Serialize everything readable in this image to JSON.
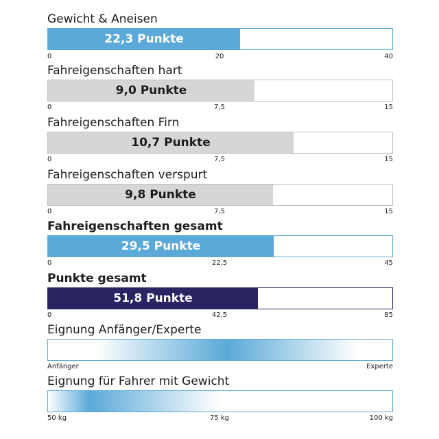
{
  "chart_data": [
    {
      "type": "bar",
      "title": "Gewicht & Aneisen",
      "value": 22.3,
      "label": "22,3 Punkte",
      "range": [
        0,
        40
      ],
      "ticks": [
        "0",
        "20",
        "40"
      ],
      "color": "#5aa9d8"
    },
    {
      "type": "bar",
      "title": "Fahreigenschaften hart",
      "value": 9.0,
      "label": "9,0 Punkte",
      "range": [
        0,
        15
      ],
      "ticks": [
        "0",
        "7,5",
        "15"
      ],
      "color": "#d6d6d6"
    },
    {
      "type": "bar",
      "title": "Fahreigenschaften Firn",
      "value": 10.7,
      "label": "10,7 Punkte",
      "range": [
        0,
        15
      ],
      "ticks": [
        "0",
        "7,5",
        "15"
      ],
      "color": "#d6d6d6"
    },
    {
      "type": "bar",
      "title": "Fahreigenschaften verspurt",
      "value": 9.8,
      "label": "9,8 Punkte",
      "range": [
        0,
        15
      ],
      "ticks": [
        "0",
        "7,5",
        "15"
      ],
      "color": "#d6d6d6"
    },
    {
      "type": "bar",
      "title": "Fahreigenschaften gesamt",
      "value": 29.5,
      "label": "29,5 Punkte",
      "range": [
        0,
        45
      ],
      "ticks": [
        "0",
        "22,5",
        "45"
      ],
      "color": "#5aa9d8"
    },
    {
      "type": "bar",
      "title": "Punkte gesamt",
      "value": 51.8,
      "label": "51,8 Punkte",
      "range": [
        0,
        85
      ],
      "ticks": [
        "0",
        "42,5",
        "85"
      ],
      "color": "#2b2462"
    }
  ],
  "suitability": [
    {
      "title": "Eignung Anfänger/Experte",
      "ticks": [
        "Anfänger",
        "Experte"
      ],
      "peak": 0.52
    },
    {
      "title": "Eignung für Fahrer mit Gewicht",
      "ticks": [
        "50 kg",
        "75 kg",
        "100 kg"
      ],
      "peak": 0.12
    }
  ],
  "colors": {
    "accent": "#5aa9d8",
    "gray": "#d6d6d6",
    "navy": "#2b2462"
  }
}
